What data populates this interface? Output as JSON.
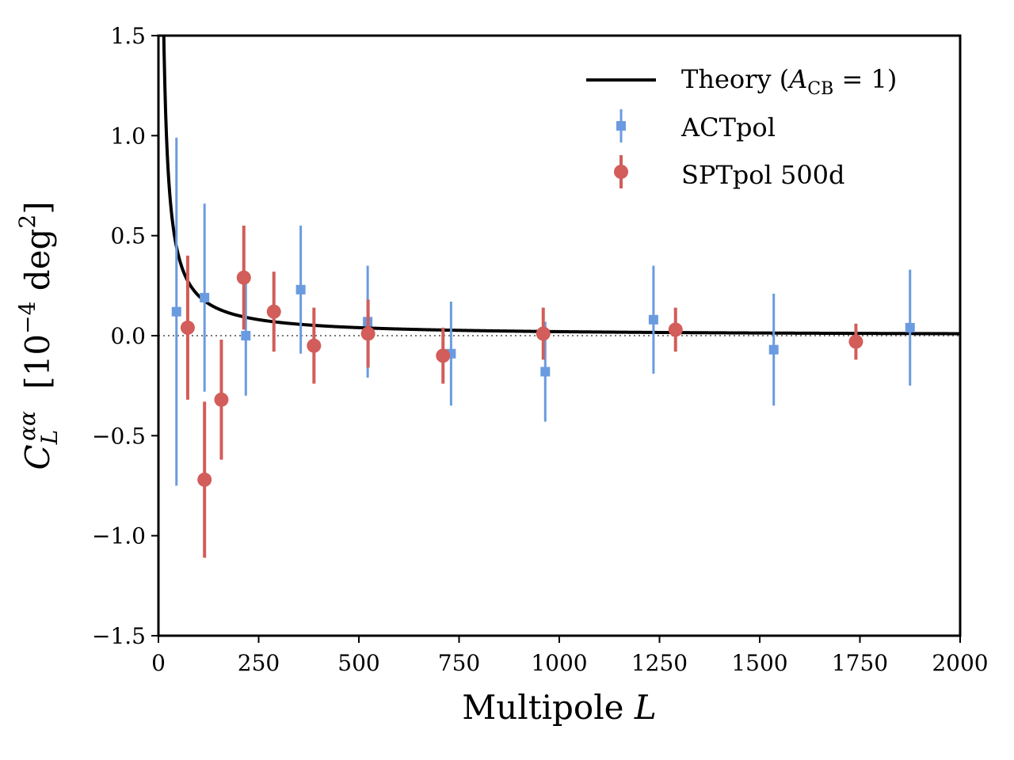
{
  "chart_data": {
    "type": "scatter",
    "title": "",
    "xlabel": "Multipole L",
    "ylabel": "C_L^{αα} [10^{-4} deg^2]",
    "xlim": [
      0,
      2000
    ],
    "ylim": [
      -1.5,
      1.5
    ],
    "xticks": [
      0,
      250,
      500,
      750,
      1000,
      1250,
      1500,
      1750,
      2000
    ],
    "xtick_labels": [
      "0",
      "250",
      "500",
      "750",
      "1000",
      "1250",
      "1500",
      "1750",
      "2000"
    ],
    "yticks": [
      -1.5,
      -1.0,
      -0.5,
      0.0,
      0.5,
      1.0,
      1.5
    ],
    "ytick_labels": [
      "−1.5",
      "−1.0",
      "−0.5",
      "0.0",
      "0.5",
      "1.0",
      "1.5"
    ],
    "reference_line": {
      "y": 0.0,
      "style": "dotted",
      "color": "#777777"
    },
    "legend": {
      "placement": "top-right",
      "frame": false
    },
    "theory": {
      "name": "Theory (A_CB = 1)",
      "color": "#000000",
      "form": "y = 20 / L",
      "x_start": 10,
      "x_end": 2000
    },
    "series": [
      {
        "name": "ACTpol",
        "marker": "square",
        "color": "#6a9be0",
        "x": [
          45,
          115,
          218,
          355,
          522,
          730,
          965,
          1235,
          1535,
          1875
        ],
        "y": [
          0.12,
          0.19,
          0.0,
          0.23,
          0.07,
          -0.09,
          -0.18,
          0.08,
          -0.07,
          0.04
        ],
        "yerr": [
          0.87,
          0.47,
          0.3,
          0.32,
          0.28,
          0.26,
          0.25,
          0.27,
          0.28,
          0.29
        ]
      },
      {
        "name": "SPTpol 500d",
        "marker": "circle",
        "color": "#d25d5a",
        "x": [
          73,
          115,
          157,
          213,
          288,
          388,
          523,
          710,
          960,
          1290,
          1740
        ],
        "y": [
          0.04,
          -0.72,
          -0.32,
          0.29,
          0.12,
          -0.05,
          0.01,
          -0.1,
          0.01,
          0.03,
          -0.03
        ],
        "yerr": [
          0.36,
          0.39,
          0.3,
          0.26,
          0.2,
          0.19,
          0.17,
          0.14,
          0.13,
          0.11,
          0.09
        ]
      }
    ]
  }
}
